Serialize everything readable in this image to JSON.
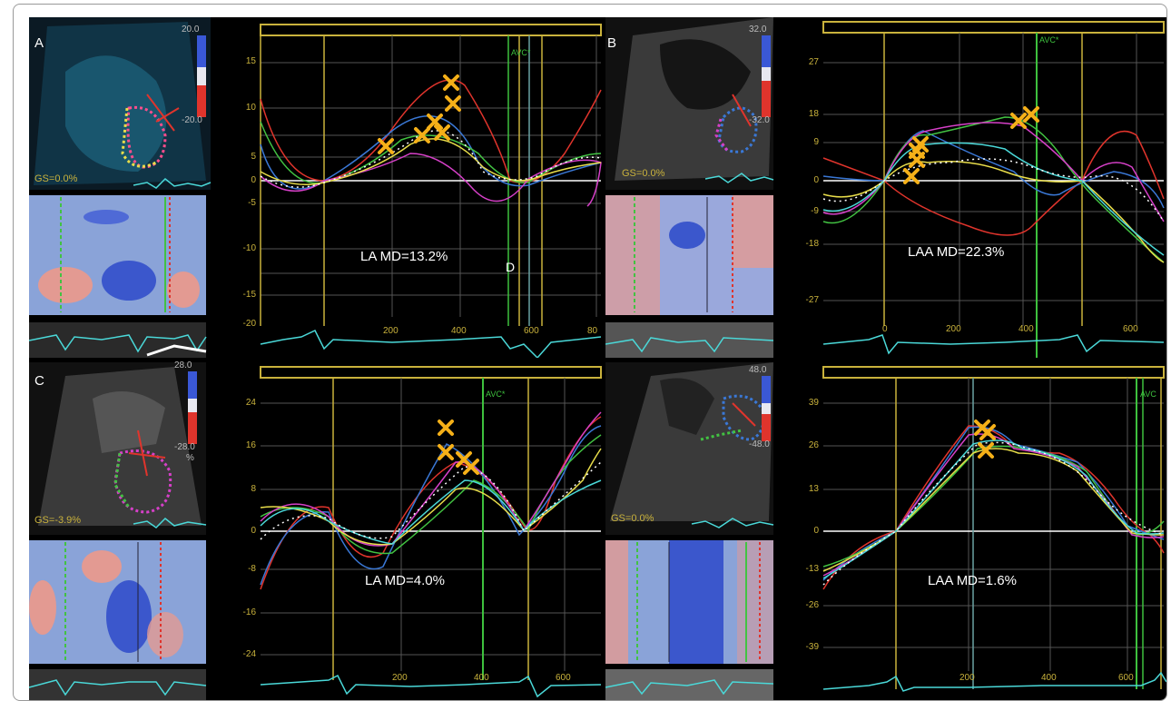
{
  "panels": {
    "A": {
      "letter": "A",
      "gs": "GS=0.0%",
      "scale_max": "20.0",
      "scale_min": "-20.0",
      "md": "LA MD=13.2%",
      "avc": "AVC*",
      "d_label": "D",
      "yticks": [
        "15",
        "10",
        "5",
        "0",
        "-5",
        "-10",
        "-15",
        "-20"
      ],
      "xticks": [
        "200",
        "400",
        "600",
        "80"
      ]
    },
    "B": {
      "letter": "B",
      "gs": "GS=0.0%",
      "scale_max": "32.0",
      "scale_min": "-32.0",
      "md": "LAA MD=22.3%",
      "avc": "AVC*",
      "yticks": [
        "27",
        "18",
        "9",
        "0",
        "-9",
        "-18",
        "-27"
      ],
      "xticks": [
        "0",
        "200",
        "400",
        "600"
      ]
    },
    "C": {
      "letter": "C",
      "gs": "GS=-3.9%",
      "scale_max": "28.0",
      "scale_min": "-28.0",
      "scale_unit": "%",
      "md": "LA MD=4.0%",
      "avc": "AVC*",
      "yticks": [
        "24",
        "16",
        "8",
        "0",
        "-8",
        "-16",
        "-24"
      ],
      "xticks": [
        "200",
        "400",
        "600"
      ]
    },
    "D": {
      "gs": "GS=0.0%",
      "scale_max": "48.0",
      "scale_min": "-48.0",
      "md": "LAA MD=1.6%",
      "avc": "AVC",
      "yticks": [
        "39",
        "26",
        "13",
        "0",
        "-13",
        "-26",
        "-39"
      ],
      "xticks": [
        "200",
        "400",
        "600"
      ]
    }
  },
  "colors": {
    "background": "#000000",
    "axis": "#c9b23c",
    "avc_line": "#3ec13e",
    "marker": "#f5b018",
    "curves": [
      "#e0342c",
      "#3a78d6",
      "#42c242",
      "#d640c8",
      "#e8dd4a",
      "#4ad8d8",
      "#ffffff"
    ]
  }
}
